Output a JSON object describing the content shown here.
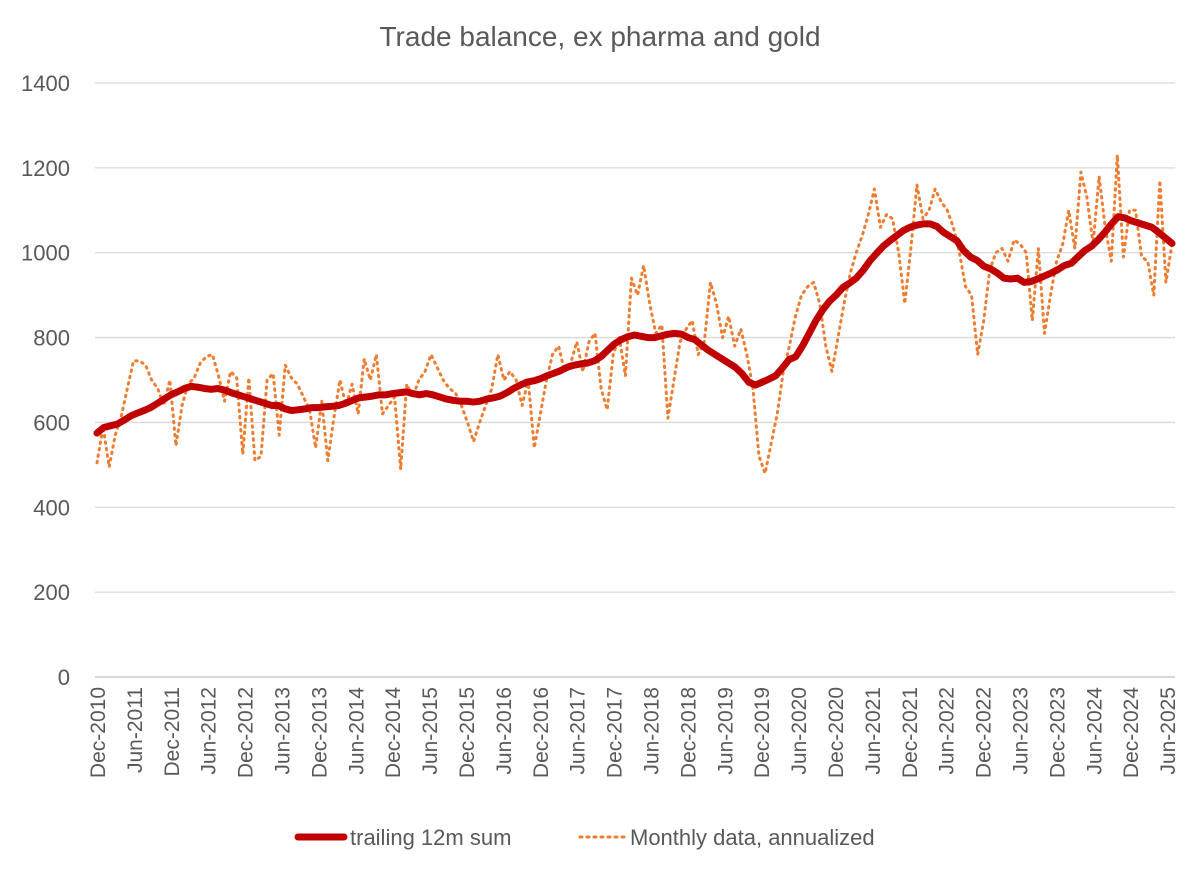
{
  "chart_data": {
    "type": "line",
    "title": "Trade balance, ex pharma and gold",
    "xlabel": "",
    "ylabel": "",
    "ylim": [
      0,
      1400
    ],
    "yticks": [
      0,
      200,
      400,
      600,
      800,
      1000,
      1200,
      1400
    ],
    "grid": true,
    "legend_position": "bottom",
    "x_tick_labels": [
      "Dec-2010",
      "Jun-2011",
      "Dec-2011",
      "Jun-2012",
      "Dec-2012",
      "Jun-2013",
      "Dec-2013",
      "Jun-2014",
      "Dec-2014",
      "Jun-2015",
      "Dec-2015",
      "Jun-2016",
      "Dec-2016",
      "Jun-2017",
      "Dec-2017",
      "Jun-2018",
      "Dec-2018",
      "Jun-2019",
      "Dec-2019",
      "Jun-2020",
      "Dec-2020",
      "Jun-2021",
      "Dec-2021",
      "Jun-2022",
      "Dec-2022",
      "Jun-2023",
      "Dec-2023",
      "Jun-2024",
      "Dec-2024",
      "Jun-2025"
    ],
    "x_start": "Dec-2010",
    "x_end": "Sep-2025",
    "series": [
      {
        "name": "trailing 12m sum",
        "color": "#C00000",
        "style": "solid",
        "values": [
          575,
          588,
          592,
          596,
          605,
          615,
          622,
          628,
          635,
          645,
          655,
          665,
          672,
          680,
          685,
          683,
          680,
          678,
          680,
          676,
          670,
          665,
          660,
          655,
          650,
          645,
          640,
          640,
          632,
          628,
          630,
          632,
          635,
          635,
          637,
          638,
          640,
          645,
          652,
          658,
          660,
          662,
          665,
          665,
          668,
          670,
          672,
          668,
          665,
          668,
          665,
          660,
          655,
          652,
          650,
          650,
          648,
          650,
          655,
          658,
          662,
          670,
          680,
          688,
          695,
          698,
          703,
          710,
          716,
          722,
          730,
          735,
          738,
          740,
          745,
          755,
          770,
          785,
          795,
          802,
          806,
          803,
          800,
          800,
          804,
          808,
          810,
          808,
          800,
          795,
          782,
          770,
          760,
          750,
          740,
          730,
          715,
          695,
          688,
          695,
          702,
          710,
          728,
          748,
          755,
          780,
          810,
          840,
          865,
          885,
          900,
          918,
          928,
          940,
          958,
          980,
          998,
          1015,
          1028,
          1040,
          1052,
          1060,
          1065,
          1068,
          1068,
          1062,
          1048,
          1038,
          1028,
          1005,
          990,
          982,
          968,
          962,
          952,
          940,
          938,
          940,
          930,
          932,
          938,
          945,
          952,
          960,
          970,
          975,
          990,
          1005,
          1015,
          1030,
          1048,
          1068,
          1085,
          1082,
          1075,
          1070,
          1065,
          1060,
          1048,
          1035,
          1022
        ]
      },
      {
        "name": "Monthly data, annualized",
        "color": "#ED7D31",
        "style": "dotted",
        "values": [
          505,
          590,
          495,
          570,
          615,
          680,
          745,
          745,
          735,
          700,
          680,
          640,
          700,
          545,
          640,
          690,
          705,
          740,
          755,
          760,
          710,
          650,
          720,
          705,
          525,
          705,
          510,
          520,
          700,
          715,
          570,
          735,
          705,
          690,
          660,
          630,
          540,
          650,
          510,
          610,
          700,
          640,
          690,
          620,
          750,
          700,
          760,
          620,
          640,
          660,
          490,
          690,
          660,
          700,
          720,
          760,
          730,
          700,
          680,
          670,
          640,
          600,
          555,
          600,
          640,
          680,
          760,
          700,
          720,
          700,
          640,
          700,
          540,
          620,
          700,
          760,
          780,
          720,
          740,
          790,
          720,
          790,
          810,
          680,
          630,
          760,
          800,
          710,
          940,
          900,
          970,
          880,
          810,
          830,
          610,
          700,
          790,
          820,
          840,
          760,
          790,
          930,
          880,
          800,
          850,
          780,
          820,
          760,
          680,
          520,
          480,
          550,
          620,
          720,
          780,
          850,
          900,
          920,
          930,
          880,
          780,
          720,
          800,
          880,
          950,
          1000,
          1040,
          1090,
          1150,
          1060,
          1090,
          1080,
          1000,
          880,
          1010,
          1160,
          1080,
          1100,
          1150,
          1120,
          1100,
          1060,
          1000,
          920,
          900,
          760,
          840,
          960,
          1000,
          1010,
          980,
          1030,
          1020,
          1000,
          840,
          1010,
          810,
          900,
          980,
          1020,
          1100,
          1010,
          1190,
          1130,
          1020,
          1180,
          1060,
          980,
          1230,
          990,
          1100,
          1100,
          990,
          980,
          900,
          1170,
          930,
          1020
        ]
      }
    ]
  }
}
